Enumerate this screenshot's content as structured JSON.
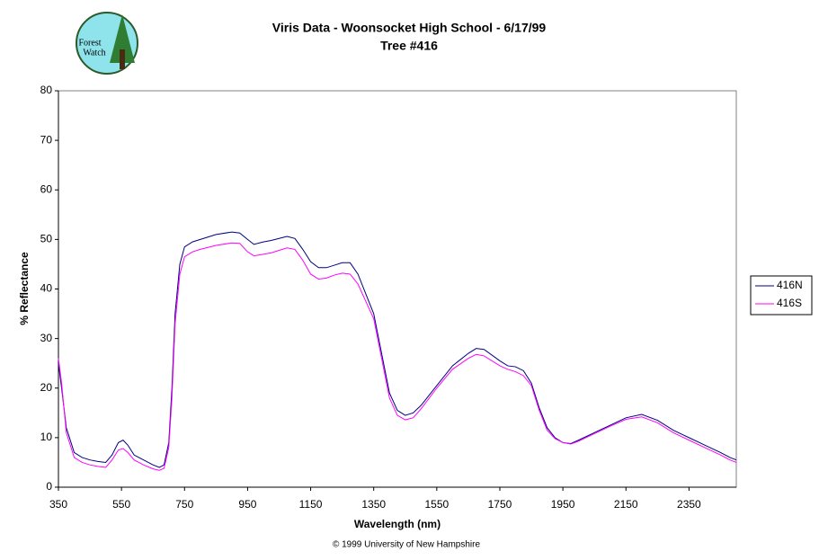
{
  "logo_text": [
    "Forest",
    "Watch"
  ],
  "footer": "© 1999 University of New Hampshire",
  "chart_data": {
    "type": "line",
    "title": "Viris Data - Woonsocket High School - 6/17/99",
    "subtitle": "Tree #416",
    "x_label": "Wavelength (nm)",
    "y_label": "% Reflectance",
    "xlim": [
      350,
      2500
    ],
    "ylim": [
      0,
      80
    ],
    "xticks": [
      350,
      550,
      750,
      950,
      1150,
      1350,
      1550,
      1750,
      1950,
      2150,
      2350
    ],
    "yticks": [
      0,
      10,
      20,
      30,
      40,
      50,
      60,
      70,
      80
    ],
    "legend": "right",
    "x": [
      350,
      360,
      375,
      400,
      425,
      450,
      475,
      500,
      520,
      540,
      555,
      570,
      590,
      620,
      650,
      670,
      685,
      700,
      710,
      720,
      735,
      750,
      775,
      800,
      850,
      900,
      925,
      950,
      970,
      1000,
      1025,
      1050,
      1075,
      1100,
      1125,
      1150,
      1175,
      1200,
      1225,
      1250,
      1275,
      1300,
      1325,
      1350,
      1375,
      1400,
      1425,
      1450,
      1475,
      1500,
      1550,
      1600,
      1650,
      1675,
      1700,
      1750,
      1775,
      1800,
      1825,
      1850,
      1875,
      1900,
      1925,
      1950,
      1975,
      2000,
      2050,
      2100,
      2150,
      2200,
      2250,
      2300,
      2350,
      2400,
      2450,
      2480,
      2500
    ],
    "series": [
      {
        "name": "416N",
        "color": "#000080",
        "values": [
          25,
          20,
          12,
          7,
          6,
          5.5,
          5.2,
          5,
          6.5,
          9,
          9.5,
          8.5,
          6.5,
          5.5,
          4.5,
          4,
          4.5,
          9,
          20,
          35,
          45,
          48.5,
          49.5,
          50,
          51,
          51.5,
          51.3,
          50,
          49,
          49.5,
          49.8,
          50.2,
          50.6,
          50.2,
          48,
          45.5,
          44.3,
          44.3,
          44.8,
          45.3,
          45.3,
          43,
          39,
          35,
          27,
          19,
          15.5,
          14.5,
          15,
          16.5,
          20.5,
          24.5,
          27,
          28,
          27.8,
          25.5,
          24.5,
          24.3,
          23.5,
          21,
          16,
          12,
          10,
          9,
          8.8,
          9.5,
          11,
          12.5,
          14,
          14.7,
          13.5,
          11.5,
          10,
          8.5,
          7,
          6,
          5.5
        ]
      },
      {
        "name": "416S",
        "color": "#ff00ff",
        "values": [
          26,
          21,
          11,
          6,
          5,
          4.5,
          4.2,
          4,
          5.5,
          7.5,
          7.8,
          7,
          5.5,
          4.5,
          3.7,
          3.4,
          3.8,
          8,
          18,
          33,
          43,
          46.5,
          47.5,
          48,
          48.8,
          49.3,
          49.2,
          47.5,
          46.7,
          47,
          47.3,
          47.8,
          48.3,
          48,
          45.8,
          43,
          42,
          42.2,
          42.8,
          43.2,
          43,
          41,
          37.5,
          34,
          26,
          18,
          14.5,
          13.6,
          14,
          15.8,
          20,
          23.8,
          26,
          26.8,
          26.5,
          24.5,
          23.8,
          23.3,
          22.5,
          20.5,
          15.5,
          11.5,
          9.8,
          9,
          8.7,
          9.3,
          10.8,
          12.3,
          13.7,
          14.2,
          13,
          11,
          9.5,
          8,
          6.5,
          5.5,
          5
        ]
      }
    ]
  }
}
